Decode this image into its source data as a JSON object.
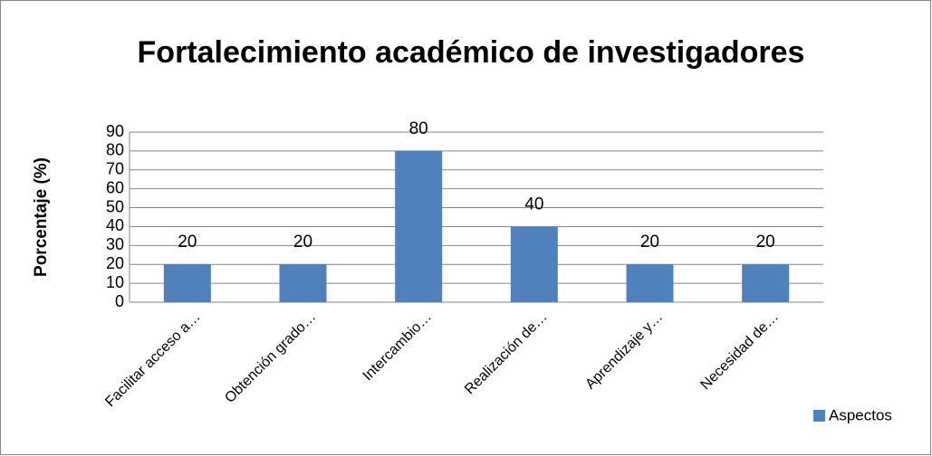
{
  "chart_data": {
    "type": "bar",
    "title": "Fortalecimiento académico de investigadores",
    "y_label": "Porcentaje (%)",
    "categories": [
      "Facilitar acceso a…",
      "Obtención grado…",
      "Intercambio…",
      "Realización de…",
      "Aprendizaje y…",
      "Necesidad de…"
    ],
    "series": [
      {
        "name": "Aspectos",
        "color": "#4f81bd",
        "values": [
          20,
          20,
          80,
          40,
          20,
          20
        ]
      }
    ],
    "ylim": [
      0,
      90
    ],
    "yticks": [
      0,
      10,
      20,
      30,
      40,
      50,
      60,
      70,
      80,
      90
    ],
    "grid": true,
    "legend": "bottom-right"
  }
}
